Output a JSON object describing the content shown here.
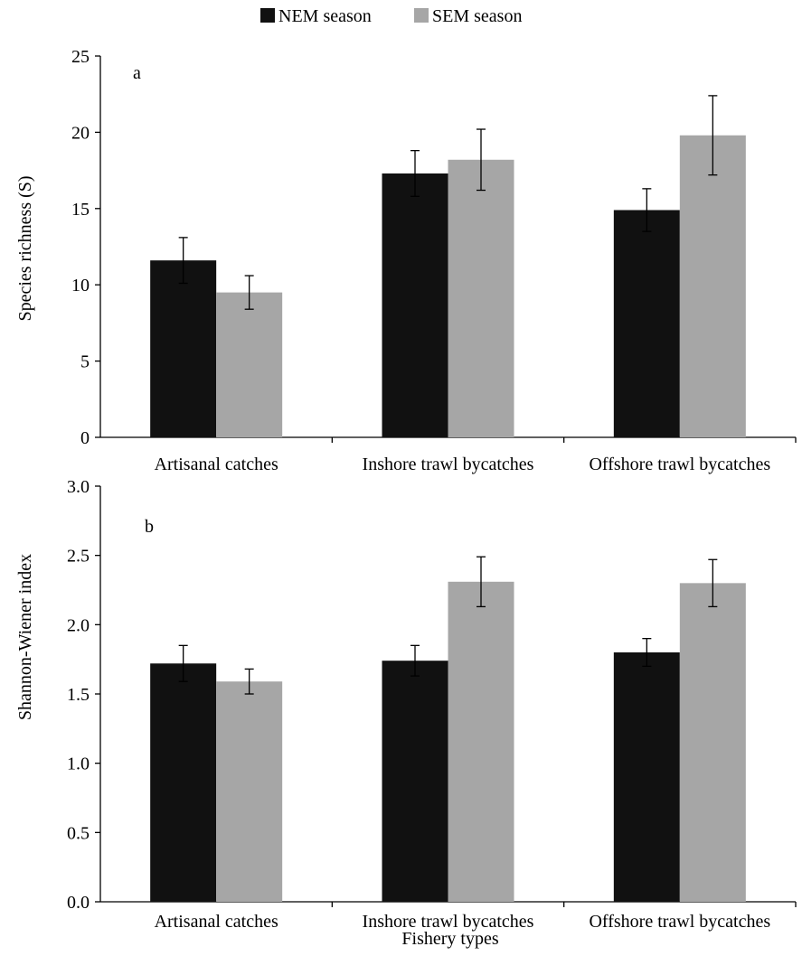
{
  "legend": {
    "items": [
      {
        "label": "NEM season",
        "color": "#111111"
      },
      {
        "label": "SEM season",
        "color": "#a6a6a6"
      }
    ]
  },
  "chart_data": [
    {
      "type": "bar",
      "panel_label": "a",
      "categories": [
        "Artisanal catches",
        "Inshore trawl bycatches",
        "Offshore trawl bycatches"
      ],
      "series": [
        {
          "name": "NEM season",
          "values": [
            11.6,
            17.3,
            14.9
          ],
          "errors": [
            1.5,
            1.5,
            1.4
          ],
          "color": "#111111"
        },
        {
          "name": "SEM season",
          "values": [
            9.5,
            18.2,
            19.8
          ],
          "errors": [
            1.1,
            2.0,
            2.6
          ],
          "color": "#a6a6a6"
        }
      ],
      "ylabel": "Species richness (S)",
      "xlabel": "",
      "ylim": [
        0,
        25
      ],
      "yticks": [
        "0",
        "5",
        "10",
        "15",
        "20",
        "25"
      ],
      "grid": false,
      "legend_position": "top-center"
    },
    {
      "type": "bar",
      "panel_label": "b",
      "categories": [
        "Artisanal catches",
        "Inshore trawl bycatches",
        "Offshore trawl bycatches"
      ],
      "series": [
        {
          "name": "NEM season",
          "values": [
            1.72,
            1.74,
            1.8
          ],
          "errors": [
            0.13,
            0.11,
            0.1
          ],
          "color": "#111111"
        },
        {
          "name": "SEM season",
          "values": [
            1.59,
            2.31,
            2.3
          ],
          "errors": [
            0.09,
            0.18,
            0.17
          ],
          "color": "#a6a6a6"
        }
      ],
      "ylabel": "Shannon-Wiener index",
      "xlabel": "Fishery types",
      "ylim": [
        0,
        3.0
      ],
      "yticks": [
        "0.0",
        "0.5",
        "1.0",
        "1.5",
        "2.0",
        "2.5",
        "3.0"
      ],
      "grid": false
    }
  ]
}
